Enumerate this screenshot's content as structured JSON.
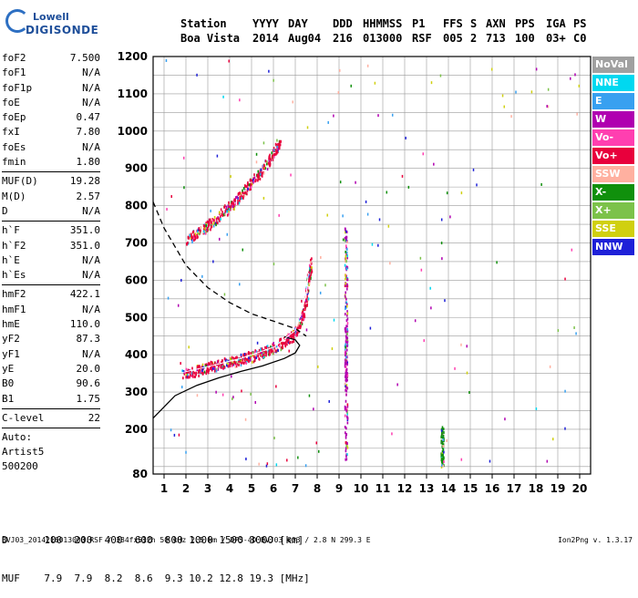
{
  "logo": {
    "line1": "Lowell",
    "line2": "DIGISONDE"
  },
  "header": {
    "row1": [
      "Station",
      "YYYY",
      "DAY",
      "DDD",
      "HHMMSS",
      "P1",
      "FFS",
      "S",
      "AXN",
      "PPS",
      "IGA",
      "PS"
    ],
    "row2": [
      "Boa Vista",
      "2014",
      "Aug04",
      "216",
      "013000",
      "RSF",
      "005",
      "2",
      "713",
      "100",
      "03+",
      "C0"
    ]
  },
  "params": [
    {
      "k": "foF2",
      "v": "7.500"
    },
    {
      "k": "foF1",
      "v": "N/A"
    },
    {
      "k": "foF1p",
      "v": "N/A"
    },
    {
      "k": "foE",
      "v": "N/A"
    },
    {
      "k": "foEp",
      "v": "0.47"
    },
    {
      "k": "fxI",
      "v": "7.80"
    },
    {
      "k": "foEs",
      "v": "N/A"
    },
    {
      "k": "fmin",
      "v": "1.80"
    },
    {
      "k": "MUF(D)",
      "v": "19.28"
    },
    {
      "k": "M(D)",
      "v": "2.57"
    },
    {
      "k": "D",
      "v": "N/A"
    },
    {
      "k": "h`F",
      "v": "351.0"
    },
    {
      "k": "h`F2",
      "v": "351.0"
    },
    {
      "k": "h`E",
      "v": "N/A"
    },
    {
      "k": "h`Es",
      "v": "N/A"
    },
    {
      "k": "hmF2",
      "v": "422.1"
    },
    {
      "k": "hmF1",
      "v": "N/A"
    },
    {
      "k": "hmE",
      "v": "110.0"
    },
    {
      "k": "yF2",
      "v": "87.3"
    },
    {
      "k": "yF1",
      "v": "N/A"
    },
    {
      "k": "yE",
      "v": "20.0"
    },
    {
      "k": "B0",
      "v": "90.6"
    },
    {
      "k": "B1",
      "v": "1.75"
    },
    {
      "k": "C-level",
      "v": "22"
    }
  ],
  "auto": [
    "Auto:",
    "Artist5",
    "500200"
  ],
  "legend": [
    {
      "label": "NoVal",
      "color": "#a0a0a0"
    },
    {
      "label": "NNE",
      "color": "#00d8f0"
    },
    {
      "label": "E",
      "color": "#38a0f0"
    },
    {
      "label": "W",
      "color": "#b000b0"
    },
    {
      "label": "Vo-",
      "color": "#ff3fb0"
    },
    {
      "label": "Vo+",
      "color": "#e8003c"
    },
    {
      "label": "SSW",
      "color": "#ffb0a0"
    },
    {
      "label": "X-",
      "color": "#10900c"
    },
    {
      "label": "X+",
      "color": "#7cc24a"
    },
    {
      "label": "SSE",
      "color": "#d0d010"
    },
    {
      "label": "NNW",
      "color": "#1e20d8"
    }
  ],
  "bottom": {
    "row_d": "D      100  200  400  600  800 1000 1500 3000 [km]",
    "row_muf": "MUF    7.9  7.9  8.2  8.6  9.3 10.2 12.8 19.3 [MHz]"
  },
  "footer": "BVJ03_2014216013000.RSF / 384fx512h 50 kHz 2.5 km / DPS-4D BVJ03 003 / 2.8 N 299.3 E",
  "version": "Ion2Png v. 1.3.17",
  "chart_data": {
    "type": "scatter",
    "xlim": [
      0.5,
      20.5
    ],
    "ylim": [
      80,
      1200
    ],
    "x_ticks": [
      1,
      2,
      3,
      4,
      5,
      6,
      7,
      8,
      9,
      10,
      11,
      12,
      13,
      14,
      15,
      16,
      17,
      18,
      19,
      20
    ],
    "y_ticks": [
      80,
      200,
      300,
      400,
      500,
      600,
      700,
      800,
      900,
      1000,
      1100,
      1200
    ],
    "grid": true,
    "series": [
      {
        "legend": "Vo+",
        "trace": "1st-hop F2 trace",
        "x": [
          1.8,
          2.5,
          3.0,
          3.5,
          4.0,
          4.5,
          5.0,
          5.5,
          6.0,
          6.5,
          7.0,
          7.3,
          7.5,
          7.6,
          7.7
        ],
        "y": [
          350,
          360,
          368,
          375,
          382,
          390,
          398,
          408,
          420,
          438,
          460,
          500,
          560,
          610,
          650
        ]
      },
      {
        "legend": "Vo+",
        "trace": "2nd-hop F2 trace",
        "x": [
          2.0,
          2.5,
          3.0,
          3.5,
          4.0,
          4.5,
          5.0,
          5.5,
          6.0,
          6.3
        ],
        "y": [
          710,
          730,
          750,
          775,
          800,
          830,
          865,
          900,
          940,
          980
        ]
      },
      {
        "legend": "W",
        "trace": "vertical streak",
        "x": [
          9.3,
          9.3,
          9.3,
          9.3,
          9.3,
          9.3
        ],
        "y": [
          750,
          600,
          450,
          380,
          300,
          120
        ]
      },
      {
        "legend": "X-",
        "trace": "vertical streak",
        "x": [
          13.7,
          13.7,
          13.7
        ],
        "y": [
          200,
          150,
          100
        ]
      }
    ],
    "curves": [
      {
        "style": "solid",
        "trace": "virtual height profile",
        "x": [
          0.5,
          1.5,
          2.5,
          3.5,
          4.5,
          5.5,
          6.5,
          7.0,
          7.2,
          7.0,
          6.5
        ],
        "y": [
          230,
          290,
          318,
          338,
          355,
          370,
          390,
          405,
          425,
          440,
          448
        ]
      },
      {
        "style": "dashed",
        "trace": "electron density profile",
        "x": [
          0.5,
          1.0,
          2.0,
          3.0,
          4.0,
          5.0,
          6.0,
          7.0,
          7.5
        ],
        "y": [
          810,
          740,
          640,
          580,
          540,
          510,
          490,
          470,
          450
        ]
      },
      {
        "style": "white",
        "trace": "fitted trace",
        "x": [
          1.8,
          3.0,
          4.5,
          6.0,
          7.0,
          7.5,
          7.6
        ],
        "y": [
          352,
          368,
          390,
          420,
          465,
          560,
          620
        ]
      }
    ]
  }
}
